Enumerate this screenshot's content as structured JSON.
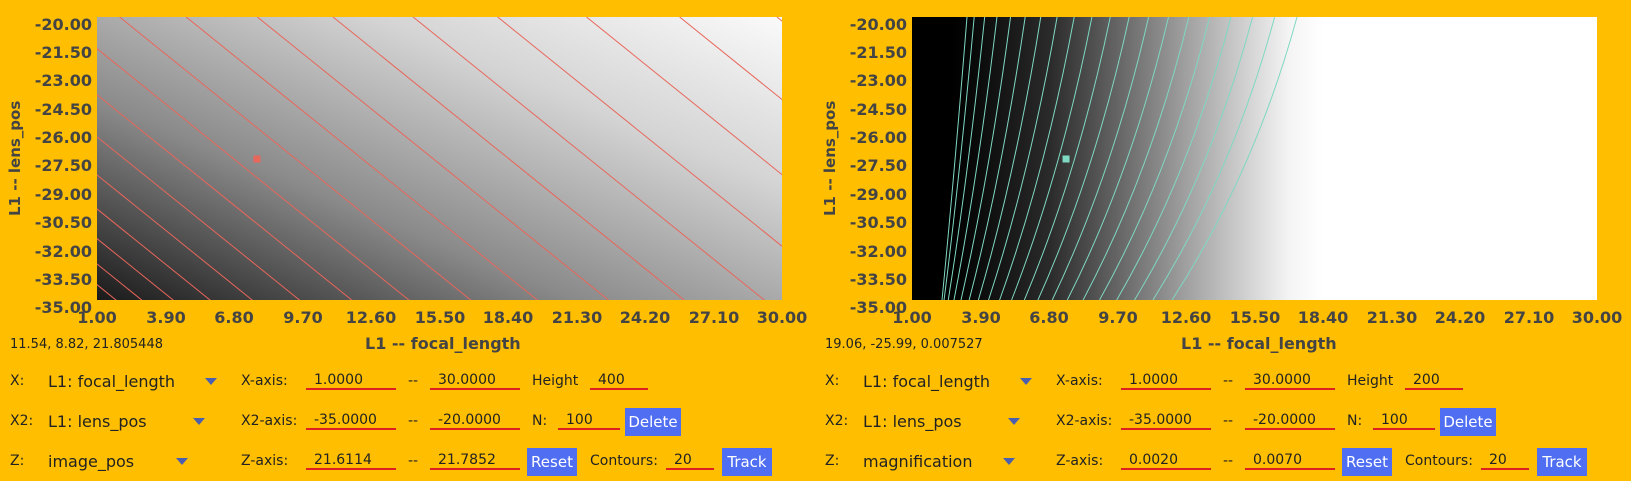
{
  "panels": [
    {
      "ylabel": "L1 -- lens_pos",
      "yticks": [
        "-20.00",
        "-21.50",
        "-23.00",
        "-24.50",
        "-26.00",
        "-27.50",
        "-29.00",
        "-30.50",
        "-32.00",
        "-33.50",
        "-35.00"
      ],
      "xticks": [
        "1.00",
        "3.90",
        "6.80",
        "9.70",
        "12.60",
        "15.50",
        "18.40",
        "21.30",
        "24.20",
        "27.10",
        "30.00"
      ],
      "xlabel": "L1 -- focal_length",
      "coords": "11.54, 8.82, 21.805448",
      "x_var": "L1: focal_length",
      "x2_var": "L1: lens_pos",
      "z_var": "image_pos",
      "x_axis_min": "1.0000",
      "x_axis_max": "30.0000",
      "x2_axis_min": "-35.0000",
      "x2_axis_max": "-20.0000",
      "z_axis_min": "21.6114",
      "z_axis_max": "21.7852",
      "height_value": "400",
      "n_value": "100",
      "contours_value": "20",
      "contour_color": "#e8665a",
      "marker": {
        "x": 7.75,
        "y": -27.5
      }
    },
    {
      "ylabel": "L1 -- lens_pos",
      "yticks": [
        "-20.00",
        "-21.50",
        "-23.00",
        "-24.50",
        "-26.00",
        "-27.50",
        "-29.00",
        "-30.50",
        "-32.00",
        "-33.50",
        "-35.00"
      ],
      "xticks": [
        "1.00",
        "3.90",
        "6.80",
        "9.70",
        "12.60",
        "15.50",
        "18.40",
        "21.30",
        "24.20",
        "27.10",
        "30.00"
      ],
      "xlabel": "L1 -- focal_length",
      "coords": "19.06, -25.99, 0.007527",
      "x_var": "L1: focal_length",
      "x2_var": "L1: lens_pos",
      "z_var": "magnification",
      "x_axis_min": "1.0000",
      "x_axis_max": "30.0000",
      "x2_axis_min": "-35.0000",
      "x2_axis_max": "-20.0000",
      "z_axis_min": "0.0020",
      "z_axis_max": "0.0070",
      "height_value": "200",
      "n_value": "100",
      "contours_value": "20",
      "contour_color": "#7fd8c2",
      "marker": {
        "x": 7.5,
        "y": -27.5
      }
    }
  ],
  "labels": {
    "x": "X:",
    "x2": "X2:",
    "z": "Z:",
    "x_axis": "X-axis:",
    "x2_axis": "X2-axis:",
    "z_axis": "Z-axis:",
    "dash": "--",
    "height": "Height",
    "n": "N:",
    "contours": "Contours:",
    "delete": "Delete",
    "reset": "Reset",
    "track": "Track"
  },
  "colors": {
    "background": "#ffbf00",
    "button": "#4f6ef2",
    "field_underline": "#e02020"
  }
}
